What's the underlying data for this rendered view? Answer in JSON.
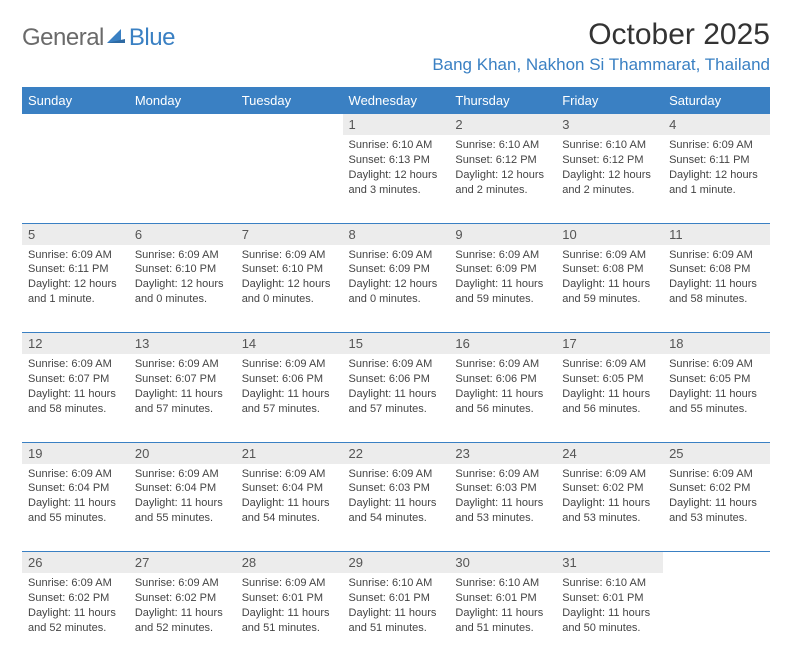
{
  "logo": {
    "textA": "General",
    "textB": "Blue"
  },
  "title": "October 2025",
  "location": "Bang Khan, Nakhon Si Thammarat, Thailand",
  "colors": {
    "headerBlue": "#3a80c3",
    "dayStripe": "#ececec",
    "logoGray": "#6a6a6a",
    "textDark": "#333333"
  },
  "weekdays": [
    "Sunday",
    "Monday",
    "Tuesday",
    "Wednesday",
    "Thursday",
    "Friday",
    "Saturday"
  ],
  "weeks": [
    [
      {
        "n": "",
        "sunrise": "",
        "sunset": "",
        "daylight": ""
      },
      {
        "n": "",
        "sunrise": "",
        "sunset": "",
        "daylight": ""
      },
      {
        "n": "",
        "sunrise": "",
        "sunset": "",
        "daylight": ""
      },
      {
        "n": "1",
        "sunrise": "Sunrise: 6:10 AM",
        "sunset": "Sunset: 6:13 PM",
        "daylight": "Daylight: 12 hours and 3 minutes."
      },
      {
        "n": "2",
        "sunrise": "Sunrise: 6:10 AM",
        "sunset": "Sunset: 6:12 PM",
        "daylight": "Daylight: 12 hours and 2 minutes."
      },
      {
        "n": "3",
        "sunrise": "Sunrise: 6:10 AM",
        "sunset": "Sunset: 6:12 PM",
        "daylight": "Daylight: 12 hours and 2 minutes."
      },
      {
        "n": "4",
        "sunrise": "Sunrise: 6:09 AM",
        "sunset": "Sunset: 6:11 PM",
        "daylight": "Daylight: 12 hours and 1 minute."
      }
    ],
    [
      {
        "n": "5",
        "sunrise": "Sunrise: 6:09 AM",
        "sunset": "Sunset: 6:11 PM",
        "daylight": "Daylight: 12 hours and 1 minute."
      },
      {
        "n": "6",
        "sunrise": "Sunrise: 6:09 AM",
        "sunset": "Sunset: 6:10 PM",
        "daylight": "Daylight: 12 hours and 0 minutes."
      },
      {
        "n": "7",
        "sunrise": "Sunrise: 6:09 AM",
        "sunset": "Sunset: 6:10 PM",
        "daylight": "Daylight: 12 hours and 0 minutes."
      },
      {
        "n": "8",
        "sunrise": "Sunrise: 6:09 AM",
        "sunset": "Sunset: 6:09 PM",
        "daylight": "Daylight: 12 hours and 0 minutes."
      },
      {
        "n": "9",
        "sunrise": "Sunrise: 6:09 AM",
        "sunset": "Sunset: 6:09 PM",
        "daylight": "Daylight: 11 hours and 59 minutes."
      },
      {
        "n": "10",
        "sunrise": "Sunrise: 6:09 AM",
        "sunset": "Sunset: 6:08 PM",
        "daylight": "Daylight: 11 hours and 59 minutes."
      },
      {
        "n": "11",
        "sunrise": "Sunrise: 6:09 AM",
        "sunset": "Sunset: 6:08 PM",
        "daylight": "Daylight: 11 hours and 58 minutes."
      }
    ],
    [
      {
        "n": "12",
        "sunrise": "Sunrise: 6:09 AM",
        "sunset": "Sunset: 6:07 PM",
        "daylight": "Daylight: 11 hours and 58 minutes."
      },
      {
        "n": "13",
        "sunrise": "Sunrise: 6:09 AM",
        "sunset": "Sunset: 6:07 PM",
        "daylight": "Daylight: 11 hours and 57 minutes."
      },
      {
        "n": "14",
        "sunrise": "Sunrise: 6:09 AM",
        "sunset": "Sunset: 6:06 PM",
        "daylight": "Daylight: 11 hours and 57 minutes."
      },
      {
        "n": "15",
        "sunrise": "Sunrise: 6:09 AM",
        "sunset": "Sunset: 6:06 PM",
        "daylight": "Daylight: 11 hours and 57 minutes."
      },
      {
        "n": "16",
        "sunrise": "Sunrise: 6:09 AM",
        "sunset": "Sunset: 6:06 PM",
        "daylight": "Daylight: 11 hours and 56 minutes."
      },
      {
        "n": "17",
        "sunrise": "Sunrise: 6:09 AM",
        "sunset": "Sunset: 6:05 PM",
        "daylight": "Daylight: 11 hours and 56 minutes."
      },
      {
        "n": "18",
        "sunrise": "Sunrise: 6:09 AM",
        "sunset": "Sunset: 6:05 PM",
        "daylight": "Daylight: 11 hours and 55 minutes."
      }
    ],
    [
      {
        "n": "19",
        "sunrise": "Sunrise: 6:09 AM",
        "sunset": "Sunset: 6:04 PM",
        "daylight": "Daylight: 11 hours and 55 minutes."
      },
      {
        "n": "20",
        "sunrise": "Sunrise: 6:09 AM",
        "sunset": "Sunset: 6:04 PM",
        "daylight": "Daylight: 11 hours and 55 minutes."
      },
      {
        "n": "21",
        "sunrise": "Sunrise: 6:09 AM",
        "sunset": "Sunset: 6:04 PM",
        "daylight": "Daylight: 11 hours and 54 minutes."
      },
      {
        "n": "22",
        "sunrise": "Sunrise: 6:09 AM",
        "sunset": "Sunset: 6:03 PM",
        "daylight": "Daylight: 11 hours and 54 minutes."
      },
      {
        "n": "23",
        "sunrise": "Sunrise: 6:09 AM",
        "sunset": "Sunset: 6:03 PM",
        "daylight": "Daylight: 11 hours and 53 minutes."
      },
      {
        "n": "24",
        "sunrise": "Sunrise: 6:09 AM",
        "sunset": "Sunset: 6:02 PM",
        "daylight": "Daylight: 11 hours and 53 minutes."
      },
      {
        "n": "25",
        "sunrise": "Sunrise: 6:09 AM",
        "sunset": "Sunset: 6:02 PM",
        "daylight": "Daylight: 11 hours and 53 minutes."
      }
    ],
    [
      {
        "n": "26",
        "sunrise": "Sunrise: 6:09 AM",
        "sunset": "Sunset: 6:02 PM",
        "daylight": "Daylight: 11 hours and 52 minutes."
      },
      {
        "n": "27",
        "sunrise": "Sunrise: 6:09 AM",
        "sunset": "Sunset: 6:02 PM",
        "daylight": "Daylight: 11 hours and 52 minutes."
      },
      {
        "n": "28",
        "sunrise": "Sunrise: 6:09 AM",
        "sunset": "Sunset: 6:01 PM",
        "daylight": "Daylight: 11 hours and 51 minutes."
      },
      {
        "n": "29",
        "sunrise": "Sunrise: 6:10 AM",
        "sunset": "Sunset: 6:01 PM",
        "daylight": "Daylight: 11 hours and 51 minutes."
      },
      {
        "n": "30",
        "sunrise": "Sunrise: 6:10 AM",
        "sunset": "Sunset: 6:01 PM",
        "daylight": "Daylight: 11 hours and 51 minutes."
      },
      {
        "n": "31",
        "sunrise": "Sunrise: 6:10 AM",
        "sunset": "Sunset: 6:01 PM",
        "daylight": "Daylight: 11 hours and 50 minutes."
      },
      {
        "n": "",
        "sunrise": "",
        "sunset": "",
        "daylight": ""
      }
    ]
  ]
}
